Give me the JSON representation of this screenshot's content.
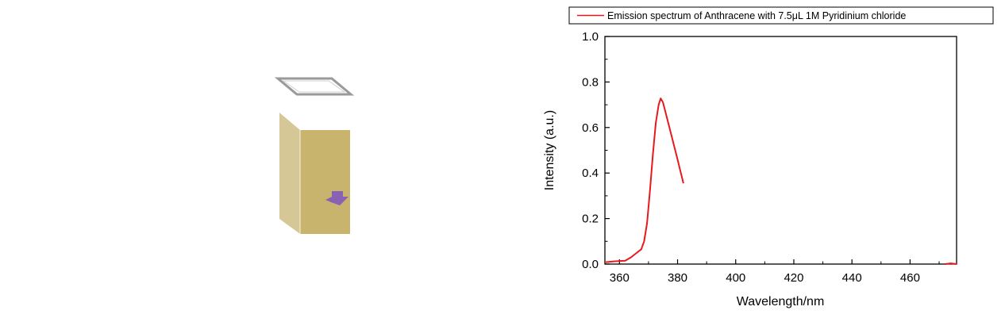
{
  "chart_data": {
    "type": "line",
    "xlabel": "Wavelength/nm",
    "ylabel": "Intensity (a.u.)",
    "xlim": [
      355,
      476
    ],
    "ylim": [
      0.0,
      1.0
    ],
    "x_ticks": [
      360,
      380,
      400,
      420,
      440,
      460
    ],
    "y_ticks": [
      0.0,
      0.2,
      0.4,
      0.6,
      0.8,
      1.0
    ],
    "x_tick_labels": [
      "360",
      "380",
      "400",
      "420",
      "440",
      "460"
    ],
    "y_tick_labels": [
      "0.0",
      "0.2",
      "0.4",
      "0.6",
      "0.8",
      "1.0"
    ],
    "grid": false,
    "legend_position": "top",
    "series": [
      {
        "name": "Emission spectrum of Anthracene with 7.5μL 1M Pyridinium chloride",
        "color": "#e8191d",
        "segments": [
          {
            "x": [
              355,
              358,
              362,
              364,
              366,
              367.5,
              368.5,
              369.5,
              370.5,
              371.5,
              372.5,
              373.5,
              374.2,
              375,
              376,
              378,
              380,
              382
            ],
            "y": [
              0.008,
              0.012,
              0.015,
              0.03,
              0.05,
              0.065,
              0.1,
              0.18,
              0.32,
              0.48,
              0.62,
              0.7,
              0.728,
              0.71,
              0.66,
              0.56,
              0.46,
              0.355
            ]
          },
          {
            "x": [
              472,
              474,
              476
            ],
            "y": [
              0.0,
              0.003,
              0.0
            ]
          }
        ]
      }
    ]
  },
  "illustration": {
    "name": "cuvette",
    "colors": {
      "front": "#c8b46c",
      "side": "#d6c796",
      "lid": "#9a9a9a",
      "arrow": "#8a62b3"
    }
  }
}
